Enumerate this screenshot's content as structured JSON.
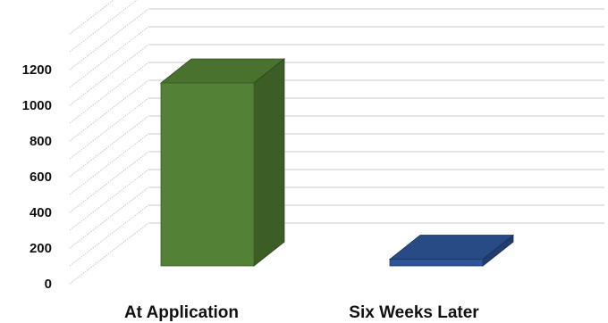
{
  "chart_data": {
    "type": "bar",
    "categories": [
      "At Application",
      "Six Weeks Later"
    ],
    "values": [
      1100,
      40
    ],
    "ylim": [
      0,
      1200
    ],
    "yticks": [
      "0",
      "200",
      "400",
      "600",
      "800",
      "1000",
      "1200"
    ],
    "grid": true,
    "style": "3d-column",
    "colors": [
      "#538135",
      "#2E5597"
    ]
  }
}
